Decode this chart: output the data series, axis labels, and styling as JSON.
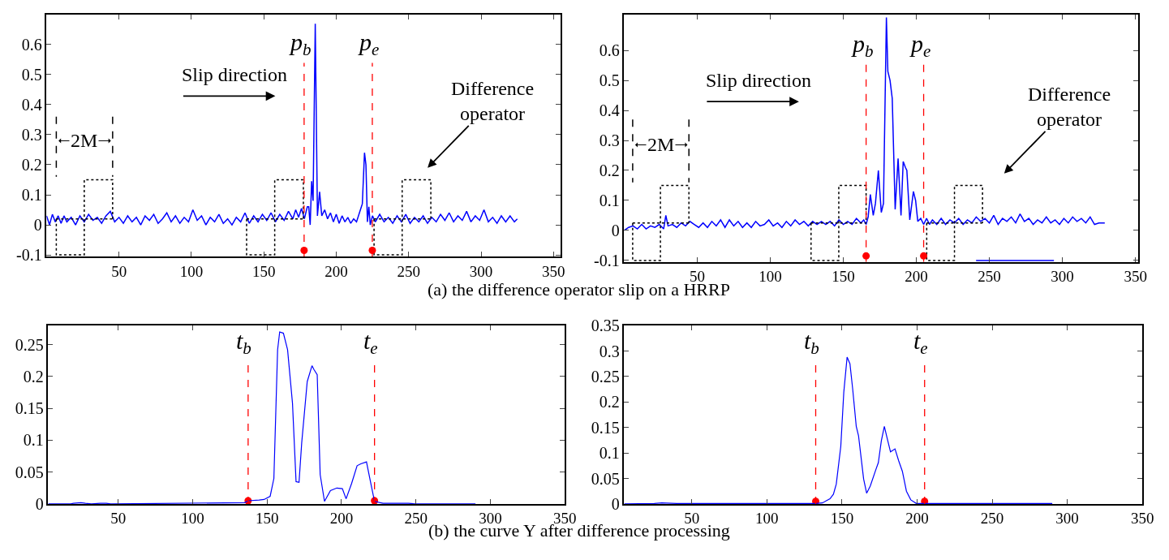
{
  "chart_data": [
    {
      "type": "line",
      "xlim": [
        0,
        355
      ],
      "ylim": [
        -0.105,
        0.7
      ],
      "xticks": [
        50,
        100,
        150,
        200,
        250,
        300,
        350
      ],
      "yticks": [
        -0.1,
        0,
        0.1,
        0.2,
        0.3,
        0.4,
        0.5,
        0.6
      ],
      "series": [
        {
          "color": "#0000ff",
          "x": [
            0,
            2,
            4,
            6,
            8,
            10,
            12,
            14,
            17,
            20,
            23,
            26,
            29,
            32,
            35,
            38,
            41,
            44,
            47,
            50,
            53,
            56,
            59,
            62,
            65,
            68,
            71,
            74,
            77,
            80,
            83,
            86,
            89,
            92,
            95,
            98,
            101,
            104,
            107,
            110,
            113,
            116,
            119,
            122,
            125,
            128,
            131,
            134,
            137,
            140,
            143,
            146,
            149,
            152,
            155,
            158,
            161,
            164,
            167,
            170,
            172,
            174,
            176,
            178,
            180,
            181,
            182,
            183,
            184,
            185.5,
            187,
            188.5,
            190,
            192,
            194,
            196,
            198,
            200,
            202,
            204,
            206,
            208,
            210,
            212,
            214,
            216,
            218,
            219.5,
            220.5,
            221.5,
            222.5,
            223.5,
            225,
            227,
            230,
            233,
            236,
            239,
            242,
            245,
            248,
            251,
            254,
            257,
            260,
            263,
            266,
            269,
            272,
            275,
            278,
            281,
            284,
            287,
            290,
            293,
            296,
            299,
            302,
            305,
            308,
            311,
            314,
            317,
            320,
            323,
            325
          ],
          "values": [
            0.03,
            0.0,
            0.035,
            0.01,
            0.03,
            0.005,
            0.03,
            0.01,
            0.025,
            0.0,
            0.03,
            0.01,
            0.035,
            0.015,
            0.025,
            0.005,
            0.03,
            0.045,
            0.01,
            0.025,
            0.005,
            0.03,
            0.01,
            0.025,
            0.0,
            0.03,
            0.015,
            0.035,
            0.005,
            0.02,
            0.04,
            0.01,
            0.03,
            0.005,
            0.025,
            0.01,
            0.05,
            0.015,
            0.03,
            0.0,
            0.025,
            0.01,
            0.035,
            0.005,
            0.02,
            0.0,
            0.025,
            0.01,
            0.04,
            0.005,
            0.03,
            0.01,
            0.035,
            0.015,
            0.04,
            0.01,
            0.035,
            0.015,
            0.045,
            0.02,
            0.05,
            0.025,
            0.055,
            0.02,
            0.06,
            0.06,
            0.0,
            0.145,
            0.08,
            0.669,
            0.03,
            0.11,
            0.03,
            0.05,
            0.02,
            0.04,
            0.01,
            0.035,
            0.005,
            0.03,
            0.01,
            0.025,
            0.005,
            0.02,
            0.01,
            0.04,
            0.07,
            0.24,
            0.2,
            0.01,
            0.06,
            0.0,
            0.03,
            0.01,
            0.035,
            0.01,
            0.025,
            0.005,
            0.03,
            0.01,
            0.035,
            0.005,
            0.025,
            0.01,
            0.03,
            0.005,
            0.025,
            0.01,
            0.035,
            0.015,
            0.04,
            0.01,
            0.03,
            0.015,
            0.045,
            0.01,
            0.03,
            0.015,
            0.05,
            0.01,
            0.025,
            0.005,
            0.03,
            0.01,
            0.03,
            0.01,
            0.02
          ]
        },
        {
          "color": "#000000",
          "line_style": "dotted",
          "x": [
            6.7,
            6.7,
            26,
            26,
            45.6,
            45.6
          ],
          "values": [
            0.02,
            -0.1,
            -0.1,
            0.15,
            0.15,
            0.02
          ]
        },
        {
          "color": "#000000",
          "line_style": "dotted",
          "x": [
            6.7,
            45.6
          ],
          "values": [
            0.02,
            0.02
          ]
        },
        {
          "color": "#000000",
          "line_style": "dotted",
          "x": [
            138.1,
            138.1,
            157.5,
            157.5,
            177.3,
            177.3
          ],
          "values": [
            0.02,
            -0.1,
            -0.1,
            0.15,
            0.15,
            0.02
          ]
        },
        {
          "color": "#000000",
          "line_style": "dotted",
          "x": [
            138.1,
            177.3
          ],
          "values": [
            0.02,
            0.02
          ]
        },
        {
          "color": "#000000",
          "line_style": "dotted",
          "x": [
            226.1,
            226.1,
            245.5,
            245.5,
            265.3,
            265.3
          ],
          "values": [
            0.02,
            -0.1,
            -0.1,
            0.15,
            0.15,
            0.02
          ]
        },
        {
          "color": "#000000",
          "line_style": "dotted",
          "x": [
            226.1,
            265.3
          ],
          "values": [
            0.02,
            0.02
          ]
        },
        {
          "color": "#000000",
          "line_style": "dashed",
          "x": [
            6.7,
            6.7
          ],
          "values": [
            0.36,
            0.16
          ]
        },
        {
          "color": "#000000",
          "line_style": "dashed",
          "x": [
            45.6,
            45.6
          ],
          "values": [
            0.36,
            0.16
          ]
        },
        {
          "type": "scatter",
          "color": "#ff0000",
          "x": [
            177.8,
            224.9
          ],
          "values": [
            -0.085,
            -0.085
          ]
        }
      ],
      "ref_lines": [
        {
          "axis": "x",
          "value": 177.8,
          "label": "p$_{b}$",
          "color": "#ff0000",
          "line_style": "dashed"
        },
        {
          "axis": "x",
          "value": 224.9,
          "label": "p$_{e}$",
          "color": "#ff0000",
          "line_style": "dashed"
        }
      ],
      "annotations": [
        "Slip direction",
        "Difference operator",
        "2M",
        "(a) the difference operator slip on a HRRP"
      ]
    },
    {
      "type": "line",
      "xlim": [
        0,
        352
      ],
      "ylim": [
        -0.105,
        0.72
      ],
      "xticks": [
        50,
        100,
        150,
        200,
        250,
        300,
        350
      ],
      "yticks": [
        -0.1,
        0,
        0.1,
        0.2,
        0.3,
        0.4,
        0.5,
        0.6
      ],
      "series": [
        {
          "color": "#0000ff",
          "x": [
            0,
            3,
            6,
            9,
            12,
            15,
            18,
            21,
            24,
            27,
            28.5,
            30,
            33,
            36,
            39,
            42,
            45,
            48,
            51,
            54,
            57,
            60,
            63,
            66,
            69,
            72,
            75,
            78,
            81,
            84,
            87,
            90,
            93,
            96,
            99,
            102,
            105,
            108,
            111,
            114,
            117,
            120,
            123,
            126,
            129,
            132,
            135,
            138,
            141,
            144,
            147,
            150,
            153,
            156,
            159,
            162,
            164,
            165.6,
            167,
            168.5,
            170.5,
            172,
            174,
            176,
            177.5,
            179.5,
            180.5,
            182,
            183.5,
            185.5,
            187.5,
            189.5,
            191,
            192.5,
            193.5,
            195.5,
            198,
            199.5,
            201,
            203,
            205,
            207,
            209,
            211,
            214,
            217,
            220,
            223,
            226,
            229,
            232,
            235,
            238,
            241,
            244,
            247,
            250,
            253,
            256,
            259,
            262,
            265,
            268,
            271,
            274,
            277,
            280,
            283,
            286,
            289,
            292,
            295,
            298,
            301,
            304,
            307,
            310,
            313,
            316,
            319,
            322,
            325,
            329
          ],
          "values": [
            0.0,
            0.01,
            0.015,
            0.005,
            0.02,
            0.005,
            0.015,
            0.01,
            0.02,
            0.005,
            0.05,
            0.015,
            0.02,
            0.01,
            0.025,
            0.015,
            0.03,
            0.02,
            0.01,
            0.025,
            0.01,
            0.03,
            0.015,
            0.035,
            0.01,
            0.035,
            0.015,
            0.03,
            0.01,
            0.025,
            0.01,
            0.03,
            0.015,
            0.02,
            0.035,
            0.015,
            0.025,
            0.01,
            0.03,
            0.015,
            0.035,
            0.02,
            0.03,
            0.015,
            0.03,
            0.02,
            0.03,
            0.02,
            0.03,
            0.015,
            0.035,
            0.02,
            0.03,
            0.02,
            0.04,
            0.025,
            0.035,
            0.02,
            0.045,
            0.12,
            0.05,
            0.09,
            0.2,
            0.06,
            0.09,
            0.71,
            0.53,
            0.5,
            0.44,
            0.07,
            0.24,
            0.05,
            0.23,
            0.21,
            0.2,
            0.035,
            0.13,
            0.1,
            0.03,
            0.04,
            0.02,
            0.04,
            0.02,
            0.035,
            0.02,
            0.04,
            0.02,
            0.035,
            0.025,
            0.04,
            0.02,
            0.035,
            0.025,
            0.045,
            0.03,
            0.04,
            0.025,
            0.05,
            0.02,
            0.04,
            0.03,
            0.045,
            0.025,
            0.055,
            0.03,
            0.04,
            0.02,
            0.035,
            0.025,
            0.045,
            0.025,
            0.035,
            0.02,
            0.04,
            0.025,
            0.045,
            0.03,
            0.04,
            0.025,
            0.045,
            0.02,
            0.025,
            0.025
          ]
        },
        {
          "color": "#0000ff",
          "x": [
            240.9,
            294.2
          ],
          "values": [
            -0.1,
            -0.1
          ]
        },
        {
          "color": "#000000",
          "line_style": "dotted",
          "x": [
            5.8,
            5.8,
            24.8,
            24.8,
            44.3,
            44.3
          ],
          "values": [
            0.025,
            -0.1,
            -0.1,
            0.15,
            0.15,
            0.025
          ]
        },
        {
          "color": "#000000",
          "line_style": "dotted",
          "x": [
            5.8,
            44.3
          ],
          "values": [
            0.025,
            0.025
          ]
        },
        {
          "color": "#000000",
          "line_style": "dotted",
          "x": [
            127.9,
            127.9,
            146.9,
            146.9,
            165.6,
            165.6
          ],
          "values": [
            0.025,
            -0.1,
            -0.1,
            0.15,
            0.15,
            0.025
          ]
        },
        {
          "color": "#000000",
          "line_style": "dotted",
          "x": [
            127.9,
            165.6
          ],
          "values": [
            0.025,
            0.025
          ]
        },
        {
          "color": "#000000",
          "line_style": "dotted",
          "x": [
            207.1,
            207.1,
            226.1,
            226.1,
            245.3,
            245.3
          ],
          "values": [
            0.025,
            -0.1,
            -0.1,
            0.15,
            0.15,
            0.025
          ]
        },
        {
          "color": "#000000",
          "line_style": "dotted",
          "x": [
            207.1,
            245.3
          ],
          "values": [
            0.025,
            0.025
          ]
        },
        {
          "color": "#000000",
          "line_style": "dashed",
          "x": [
            5.8,
            5.8
          ],
          "values": [
            0.37,
            0.16
          ]
        },
        {
          "color": "#000000",
          "line_style": "dashed",
          "x": [
            44.3,
            44.3
          ],
          "values": [
            0.37,
            0.16
          ]
        },
        {
          "type": "scatter",
          "color": "#ff0000",
          "x": [
            165.6,
            205
          ],
          "values": [
            -0.085,
            -0.085
          ]
        }
      ],
      "ref_lines": [
        {
          "axis": "x",
          "value": 165.6,
          "label": "p$_{b}$",
          "color": "#ff0000",
          "line_style": "dashed"
        },
        {
          "axis": "x",
          "value": 205,
          "label": "p$_{e}$",
          "color": "#ff0000",
          "line_style": "dashed"
        }
      ],
      "annotations": [
        "Slip direction",
        "Difference operator",
        "2M"
      ]
    },
    {
      "type": "line",
      "xlim": [
        3,
        350
      ],
      "ylim": [
        0,
        0.28
      ],
      "xticks": [
        50,
        100,
        150,
        200,
        250,
        300,
        350
      ],
      "yticks": [
        0,
        0.05,
        0.1,
        0.15,
        0.2,
        0.25
      ],
      "series": [
        {
          "type": "scatter",
          "color": "#ff0000",
          "x": [
            137.3,
            222.2
          ],
          "values": [
            0.005,
            0.005
          ]
        },
        {
          "color": "#0000ff",
          "x": [
            3,
            18,
            20,
            25,
            28,
            32,
            38,
            42,
            45,
            135,
            137.3,
            144.7,
            148,
            152.1,
            154.6,
            157.1,
            158.5,
            161,
            163.8,
            167.1,
            169.5,
            171.5,
            173.3,
            177,
            180.2,
            181.5,
            183.7,
            185.7,
            188.6,
            192.6,
            196.9,
            200.6,
            203.1,
            206.8,
            210.5,
            213,
            216.8,
            220,
            222.2,
            227.9,
            245,
            250,
            290
          ],
          "values": [
            0,
            0,
            0.001,
            0.002,
            0.001,
            0,
            0.001,
            0.001,
            0,
            0.002,
            0.005,
            0.006,
            0.007,
            0.012,
            0.04,
            0.242,
            0.27,
            0.268,
            0.242,
            0.158,
            0.035,
            0.034,
            0.096,
            0.192,
            0.217,
            0.211,
            0.203,
            0.046,
            0.004,
            0.021,
            0.025,
            0.024,
            0.008,
            0.032,
            0.06,
            0.063,
            0.066,
            0.029,
            0.004,
            0.001,
            0.001,
            0,
            0
          ]
        }
      ],
      "ref_lines": [
        {
          "axis": "x",
          "value": 137.3,
          "label": "t$_{b}$",
          "color": "#ff0000",
          "line_style": "dashed"
        },
        {
          "axis": "x",
          "value": 222.2,
          "label": "t$_{e}$",
          "color": "#ff0000",
          "line_style": "dashed"
        }
      ],
      "annotations": [
        "(b) the curve Y after difference processing"
      ]
    },
    {
      "type": "line",
      "xlim": [
        5,
        350
      ],
      "ylim": [
        0,
        0.35
      ],
      "xticks": [
        50,
        100,
        150,
        200,
        250,
        300,
        350
      ],
      "yticks": [
        0,
        0.05,
        0.1,
        0.15,
        0.2,
        0.25,
        0.3,
        0.35
      ],
      "series": [
        {
          "type": "scatter",
          "color": "#ff0000",
          "x": [
            132.5,
            205
          ],
          "values": [
            0.005,
            0.005
          ]
        },
        {
          "color": "#0000ff",
          "x": [
            5,
            25,
            30,
            40,
            130,
            132.5,
            136.9,
            142,
            144.3,
            146.2,
            149.2,
            151.2,
            153.4,
            155.3,
            157.1,
            159.5,
            161,
            164.4,
            166.4,
            168.8,
            172.5,
            174.2,
            176.2,
            178.2,
            179.9,
            182.3,
            185.3,
            187.7,
            190.2,
            192.9,
            195.8,
            199.5,
            290
          ],
          "values": [
            0,
            0.001,
            0.002,
            0.001,
            0.001,
            0.001,
            0.002,
            0.01,
            0.019,
            0.039,
            0.113,
            0.219,
            0.288,
            0.275,
            0.226,
            0.152,
            0.134,
            0.049,
            0.021,
            0.035,
            0.067,
            0.081,
            0.124,
            0.152,
            0.131,
            0.102,
            0.108,
            0.085,
            0.064,
            0.025,
            0.008,
            0.001,
            0.001
          ]
        }
      ],
      "ref_lines": [
        {
          "axis": "x",
          "value": 132.5,
          "label": "t$_{b}$",
          "color": "#ff0000",
          "line_style": "dashed"
        },
        {
          "axis": "x",
          "value": 205,
          "label": "t$_{e}$",
          "color": "#ff0000",
          "line_style": "dashed"
        }
      ]
    }
  ]
}
